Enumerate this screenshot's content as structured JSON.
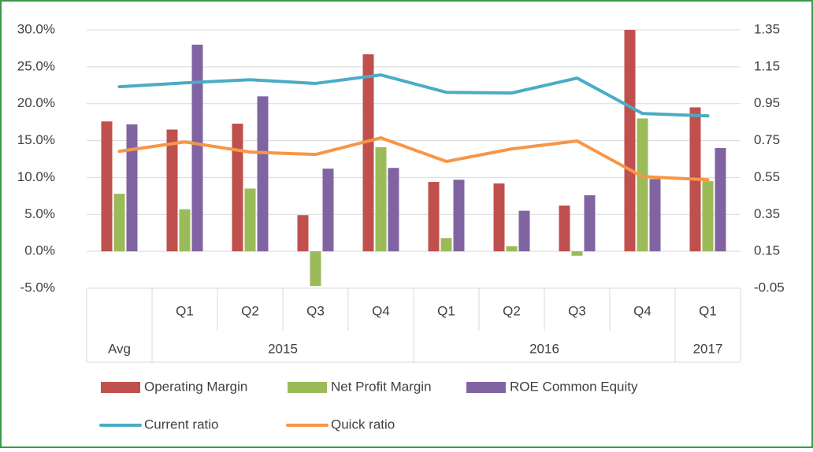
{
  "chart_data": {
    "type": "bar",
    "groups": [
      {
        "name": "Avg",
        "categories": [
          null
        ]
      },
      {
        "name": "2015",
        "categories": [
          "Q1",
          "Q2",
          "Q3",
          "Q4"
        ]
      },
      {
        "name": "2016",
        "categories": [
          "Q1",
          "Q2",
          "Q3",
          "Q4"
        ]
      },
      {
        "name": "2017",
        "categories": [
          "Q1"
        ]
      }
    ],
    "series": [
      {
        "name": "Operating Margin",
        "type": "bar",
        "color": "#c0504d",
        "values": [
          17.6,
          16.5,
          17.3,
          4.9,
          26.7,
          9.4,
          9.2,
          6.2,
          30.0,
          19.5
        ]
      },
      {
        "name": "Net Profit Margin",
        "type": "bar",
        "color": "#9bbb59",
        "values": [
          7.8,
          5.7,
          8.5,
          -4.7,
          14.1,
          1.8,
          0.7,
          -0.6,
          18.0,
          9.5
        ]
      },
      {
        "name": "ROE Common Equity",
        "type": "bar",
        "color": "#8064a2",
        "values": [
          17.2,
          28.0,
          21.0,
          11.2,
          11.3,
          9.7,
          5.5,
          7.6,
          9.8,
          14.0
        ]
      },
      {
        "name": "Current ratio",
        "type": "line",
        "axis": "y2",
        "color": "#4bacc6",
        "values": [
          1.042,
          1.063,
          1.08,
          1.06,
          1.106,
          1.012,
          1.008,
          1.089,
          0.897,
          0.884
        ]
      },
      {
        "name": "Quick ratio",
        "type": "line",
        "axis": "y2",
        "color": "#f79646",
        "values": [
          0.692,
          0.743,
          0.688,
          0.675,
          0.765,
          0.637,
          0.705,
          0.748,
          0.555,
          0.538
        ]
      }
    ],
    "ylim": [
      -5,
      30
    ],
    "yticks": [
      {
        "value": -5,
        "label": "-5.0%"
      },
      {
        "value": 0,
        "label": "0.0%"
      },
      {
        "value": 5,
        "label": "5.0%"
      },
      {
        "value": 10,
        "label": "10.0%"
      },
      {
        "value": 15,
        "label": "15.0%"
      },
      {
        "value": 20,
        "label": "20.0%"
      },
      {
        "value": 25,
        "label": "25.0%"
      },
      {
        "value": 30,
        "label": "30.0%"
      }
    ],
    "y2lim": [
      -0.05,
      1.35
    ],
    "y2ticks": [
      -0.05,
      0.15,
      0.35,
      0.55,
      0.75,
      0.95,
      1.15,
      1.35
    ],
    "grid": true,
    "legend": "bottom"
  }
}
